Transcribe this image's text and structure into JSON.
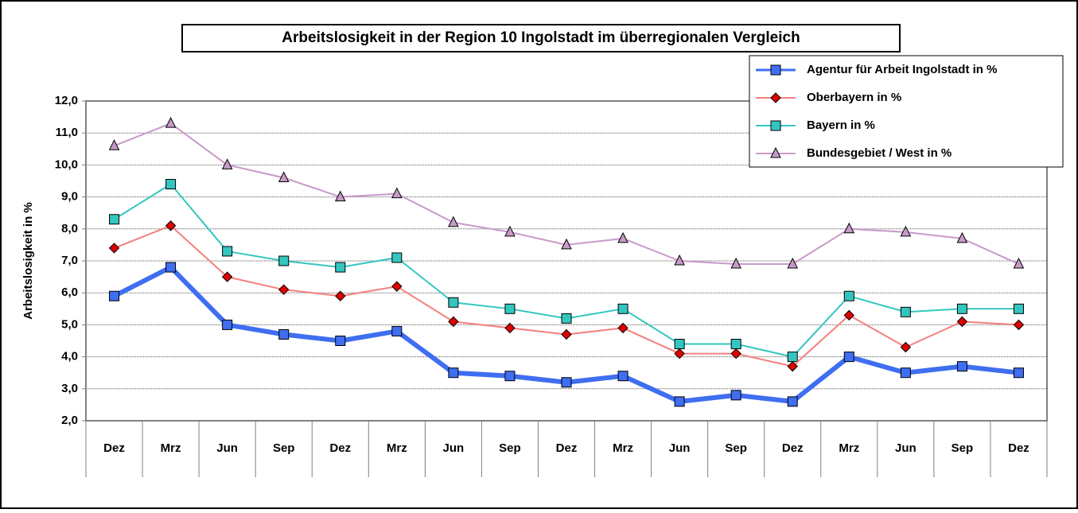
{
  "chart_data": {
    "type": "line",
    "title": "Arbeitslosigkeit in der Region 10 Ingolstadt im überregionalen Vergleich",
    "y_label": "Arbeitslosigkeit in %",
    "categories": [
      "Dez",
      "Mrz",
      "Jun",
      "Sep",
      "Dez",
      "Mrz",
      "Jun",
      "Sep",
      "Dez",
      "Mrz",
      "Jun",
      "Sep",
      "Dez",
      "Mrz",
      "Jun",
      "Sep",
      "Dez"
    ],
    "series": [
      {
        "name": "Agentur für Arbeit Ingolstadt in %",
        "color": "#3f6ef0",
        "marker": "square",
        "width": 6,
        "values": [
          5.9,
          6.8,
          5.0,
          4.7,
          4.5,
          4.8,
          3.5,
          3.4,
          3.2,
          3.4,
          2.6,
          2.8,
          2.6,
          4.0,
          3.5,
          3.7,
          3.5
        ]
      },
      {
        "name": "Oberbayern in %",
        "color": "#f47f7f",
        "marker": "diamond",
        "marker_color": "#e00000",
        "width": 2,
        "values": [
          7.4,
          8.1,
          6.5,
          6.1,
          5.9,
          6.2,
          5.1,
          4.9,
          4.7,
          4.9,
          4.1,
          4.1,
          3.7,
          5.3,
          4.3,
          5.1,
          5.0
        ]
      },
      {
        "name": "Bayern in %",
        "color": "#33c6c0",
        "marker": "square",
        "width": 2,
        "values": [
          8.3,
          9.4,
          7.3,
          7.0,
          6.8,
          7.1,
          5.7,
          5.5,
          5.2,
          5.5,
          4.4,
          4.4,
          4.0,
          5.9,
          5.4,
          5.5,
          5.5
        ]
      },
      {
        "name": "Bundesgebiet / West in %",
        "color": "#c89ac8",
        "marker": "triangle",
        "width": 2,
        "values": [
          10.6,
          11.3,
          10.0,
          9.6,
          9.0,
          9.1,
          8.2,
          7.9,
          7.5,
          7.7,
          7.0,
          6.9,
          6.9,
          8.0,
          7.9,
          7.7,
          6.9
        ]
      }
    ],
    "ylim": [
      2,
      12
    ],
    "yticks": [
      {
        "value": 2,
        "label": "2,0"
      },
      {
        "value": 3,
        "label": "3,0"
      },
      {
        "value": 4,
        "label": "4,0"
      },
      {
        "value": 5,
        "label": "5,0"
      },
      {
        "value": 6,
        "label": "6,0"
      },
      {
        "value": 7,
        "label": "7,0"
      },
      {
        "value": 8,
        "label": "8,0"
      },
      {
        "value": 9,
        "label": "9,0"
      },
      {
        "value": 10,
        "label": "10,0"
      },
      {
        "value": 11,
        "label": "11,0"
      },
      {
        "value": 12,
        "label": "12,0"
      }
    ],
    "grid": true,
    "legend": "upper right"
  }
}
